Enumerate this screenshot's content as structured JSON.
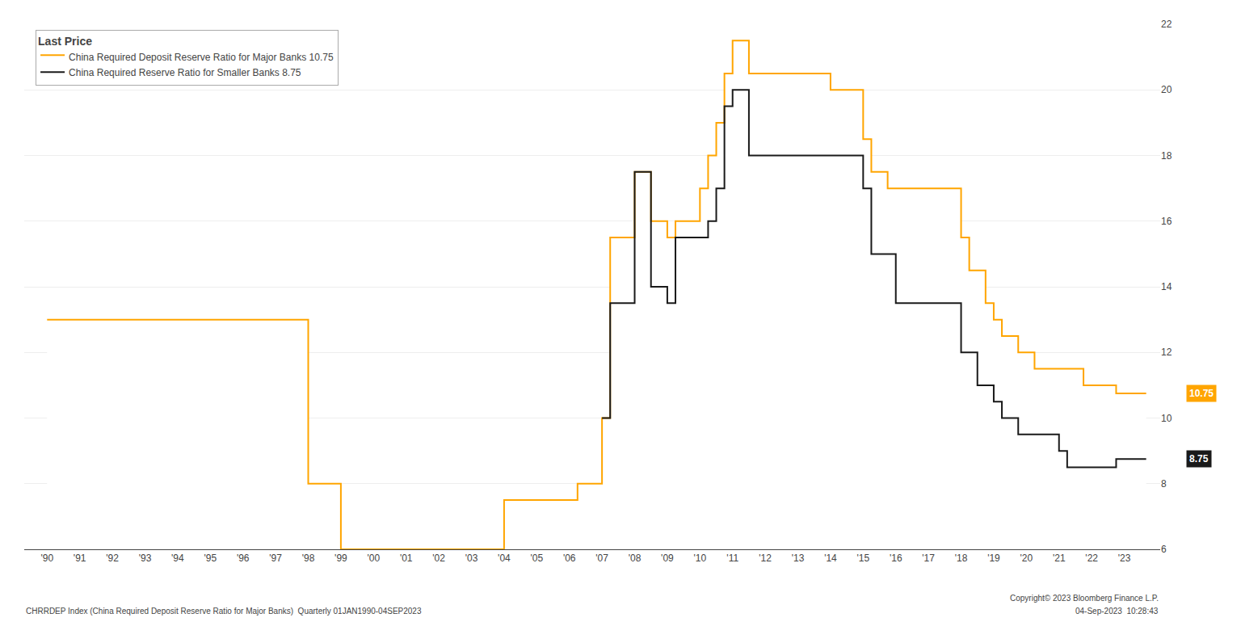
{
  "chart_data": {
    "type": "line",
    "title": "Last Price",
    "line_style": "step",
    "grid": true,
    "legend": "top-left",
    "series": [
      {
        "name": "China Required Deposit Reserve Ratio for Major Banks 10.75",
        "color": "#FFA500",
        "x": [
          1990.0,
          1991.0,
          1997.75,
          1998.0,
          1999.0,
          1999.25,
          2003.75,
          2004.0,
          2006.0,
          2006.25,
          2007.0,
          2007.25,
          2007.75,
          2008.0,
          2008.5,
          2008.75,
          2009.0,
          2009.25,
          2010.0,
          2010.25,
          2010.5,
          2010.75,
          2011.0,
          2011.25,
          2011.5,
          2012.0,
          2014.0,
          2015.0,
          2015.25,
          2015.75,
          2016.0,
          2018.0,
          2018.25,
          2018.75,
          2019.0,
          2019.25,
          2019.75,
          2020.0,
          2020.25,
          2021.0,
          2021.75,
          2022.0,
          2022.75,
          2023.0,
          2023.67
        ],
        "values": [
          13.0,
          13.0,
          13.0,
          8.0,
          6.0,
          6.0,
          6.0,
          7.5,
          7.5,
          8.0,
          10.0,
          15.5,
          15.5,
          17.5,
          16.0,
          16.0,
          15.5,
          16.0,
          17.0,
          18.0,
          19.0,
          20.5,
          21.5,
          21.5,
          20.5,
          20.5,
          20.0,
          18.5,
          17.5,
          17.0,
          17.0,
          15.5,
          14.5,
          13.5,
          13.0,
          12.5,
          12.0,
          12.0,
          11.5,
          11.5,
          11.0,
          11.0,
          10.75,
          10.75,
          10.75
        ]
      },
      {
        "name": "China Required Reserve Ratio for Smaller Banks 8.75",
        "color": "#1a1a1a",
        "x": [
          2007.0,
          2007.25,
          2007.75,
          2008.0,
          2008.5,
          2008.75,
          2009.0,
          2009.25,
          2010.0,
          2010.25,
          2010.5,
          2010.75,
          2011.0,
          2011.25,
          2011.5,
          2012.0,
          2014.0,
          2015.0,
          2015.25,
          2016.0,
          2018.0,
          2018.25,
          2018.5,
          2019.0,
          2019.25,
          2019.75,
          2020.0,
          2021.0,
          2021.25,
          2021.75,
          2022.0,
          2022.75,
          2023.0,
          2023.67
        ],
        "values": [
          10.0,
          13.5,
          13.5,
          17.5,
          14.0,
          14.0,
          13.5,
          15.5,
          15.5,
          16.0,
          17.0,
          19.5,
          20.0,
          20.0,
          18.0,
          18.0,
          18.0,
          17.0,
          15.0,
          13.5,
          12.0,
          12.0,
          11.0,
          10.5,
          10.0,
          9.5,
          9.5,
          9.0,
          8.5,
          8.5,
          8.5,
          8.75,
          8.75,
          8.75
        ]
      }
    ],
    "annotations": [
      {
        "text": "10.75",
        "y": 10.75,
        "color": "#FFA500"
      },
      {
        "text": "8.75",
        "y": 8.75,
        "color": "#1a1a1a"
      },
      {
        "text": "CHRRDEP Index (China Required Deposit Reserve Ratio for Major Banks)  Quarterly 01JAN1990-04SEP2023"
      },
      {
        "text": "Copyright© 2023 Bloomberg Finance L.P."
      },
      {
        "text": "04-Sep-2023  10:28:43"
      }
    ],
    "xlim": [
      1989.3,
      2024.1
    ],
    "xticks": [
      {
        "value": 1990,
        "label": "'90"
      },
      {
        "value": 1991,
        "label": "'91"
      },
      {
        "value": 1992,
        "label": "'92"
      },
      {
        "value": 1993,
        "label": "'93"
      },
      {
        "value": 1994,
        "label": "'94"
      },
      {
        "value": 1995,
        "label": "'95"
      },
      {
        "value": 1996,
        "label": "'96"
      },
      {
        "value": 1997,
        "label": "'97"
      },
      {
        "value": 1998,
        "label": "'98"
      },
      {
        "value": 1999,
        "label": "'99"
      },
      {
        "value": 2000,
        "label": "'00"
      },
      {
        "value": 2001,
        "label": "'01"
      },
      {
        "value": 2002,
        "label": "'02"
      },
      {
        "value": 2003,
        "label": "'03"
      },
      {
        "value": 2004,
        "label": "'04"
      },
      {
        "value": 2005,
        "label": "'05"
      },
      {
        "value": 2006,
        "label": "'06"
      },
      {
        "value": 2007,
        "label": "'07"
      },
      {
        "value": 2008,
        "label": "'08"
      },
      {
        "value": 2009,
        "label": "'09"
      },
      {
        "value": 2010,
        "label": "'10"
      },
      {
        "value": 2011,
        "label": "'11"
      },
      {
        "value": 2012,
        "label": "'12"
      },
      {
        "value": 2013,
        "label": "'13"
      },
      {
        "value": 2014,
        "label": "'14"
      },
      {
        "value": 2015,
        "label": "'15"
      },
      {
        "value": 2016,
        "label": "'16"
      },
      {
        "value": 2017,
        "label": "'17"
      },
      {
        "value": 2018,
        "label": "'18"
      },
      {
        "value": 2019,
        "label": "'19"
      },
      {
        "value": 2020,
        "label": "'20"
      },
      {
        "value": 2021,
        "label": "'21"
      },
      {
        "value": 2022,
        "label": "'22"
      },
      {
        "value": 2023,
        "label": "'23"
      }
    ],
    "ylim": [
      6,
      22
    ],
    "yticks": [
      6,
      8,
      10,
      12,
      14,
      16,
      18,
      20,
      22
    ]
  }
}
